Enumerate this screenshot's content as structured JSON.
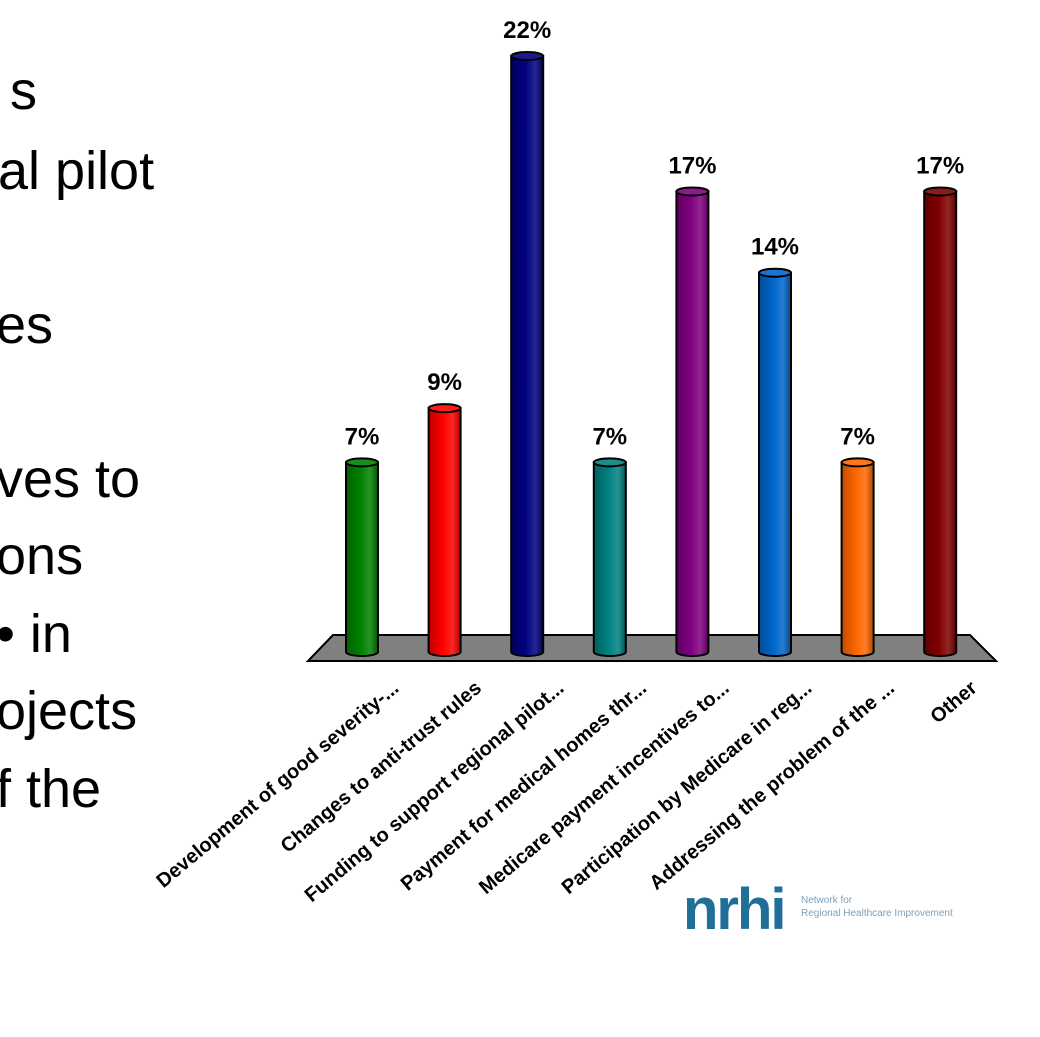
{
  "background_text": [
    "s",
    "al pilot",
    "es",
    "ves to",
    "ons",
    "• in",
    "ojects",
    "f the"
  ],
  "logo": {
    "name": "nrhi",
    "tagline_line1": "Network for",
    "tagline_line2": "Regional Healthcare Improvement"
  },
  "chart_data": {
    "type": "bar",
    "style": "3d-cylinder",
    "categories": [
      "Development of good severity-...",
      "Changes to anti-trust rules",
      "Funding to support regional pilot...",
      "Payment for medical homes thr...",
      "Medicare payment incentives to...",
      "Participation by Medicare in reg...",
      "Addressing the problem of the ...",
      "Other"
    ],
    "values": [
      7,
      9,
      22,
      7,
      17,
      14,
      7,
      17
    ],
    "value_labels": [
      "7%",
      "9%",
      "22%",
      "7%",
      "17%",
      "14%",
      "7%",
      "17%"
    ],
    "colors": [
      "#008000",
      "#ff0000",
      "#000080",
      "#008080",
      "#800080",
      "#0066cc",
      "#ff6600",
      "#800000"
    ],
    "ylim": [
      0,
      22
    ],
    "grid": false,
    "legend": "none"
  }
}
